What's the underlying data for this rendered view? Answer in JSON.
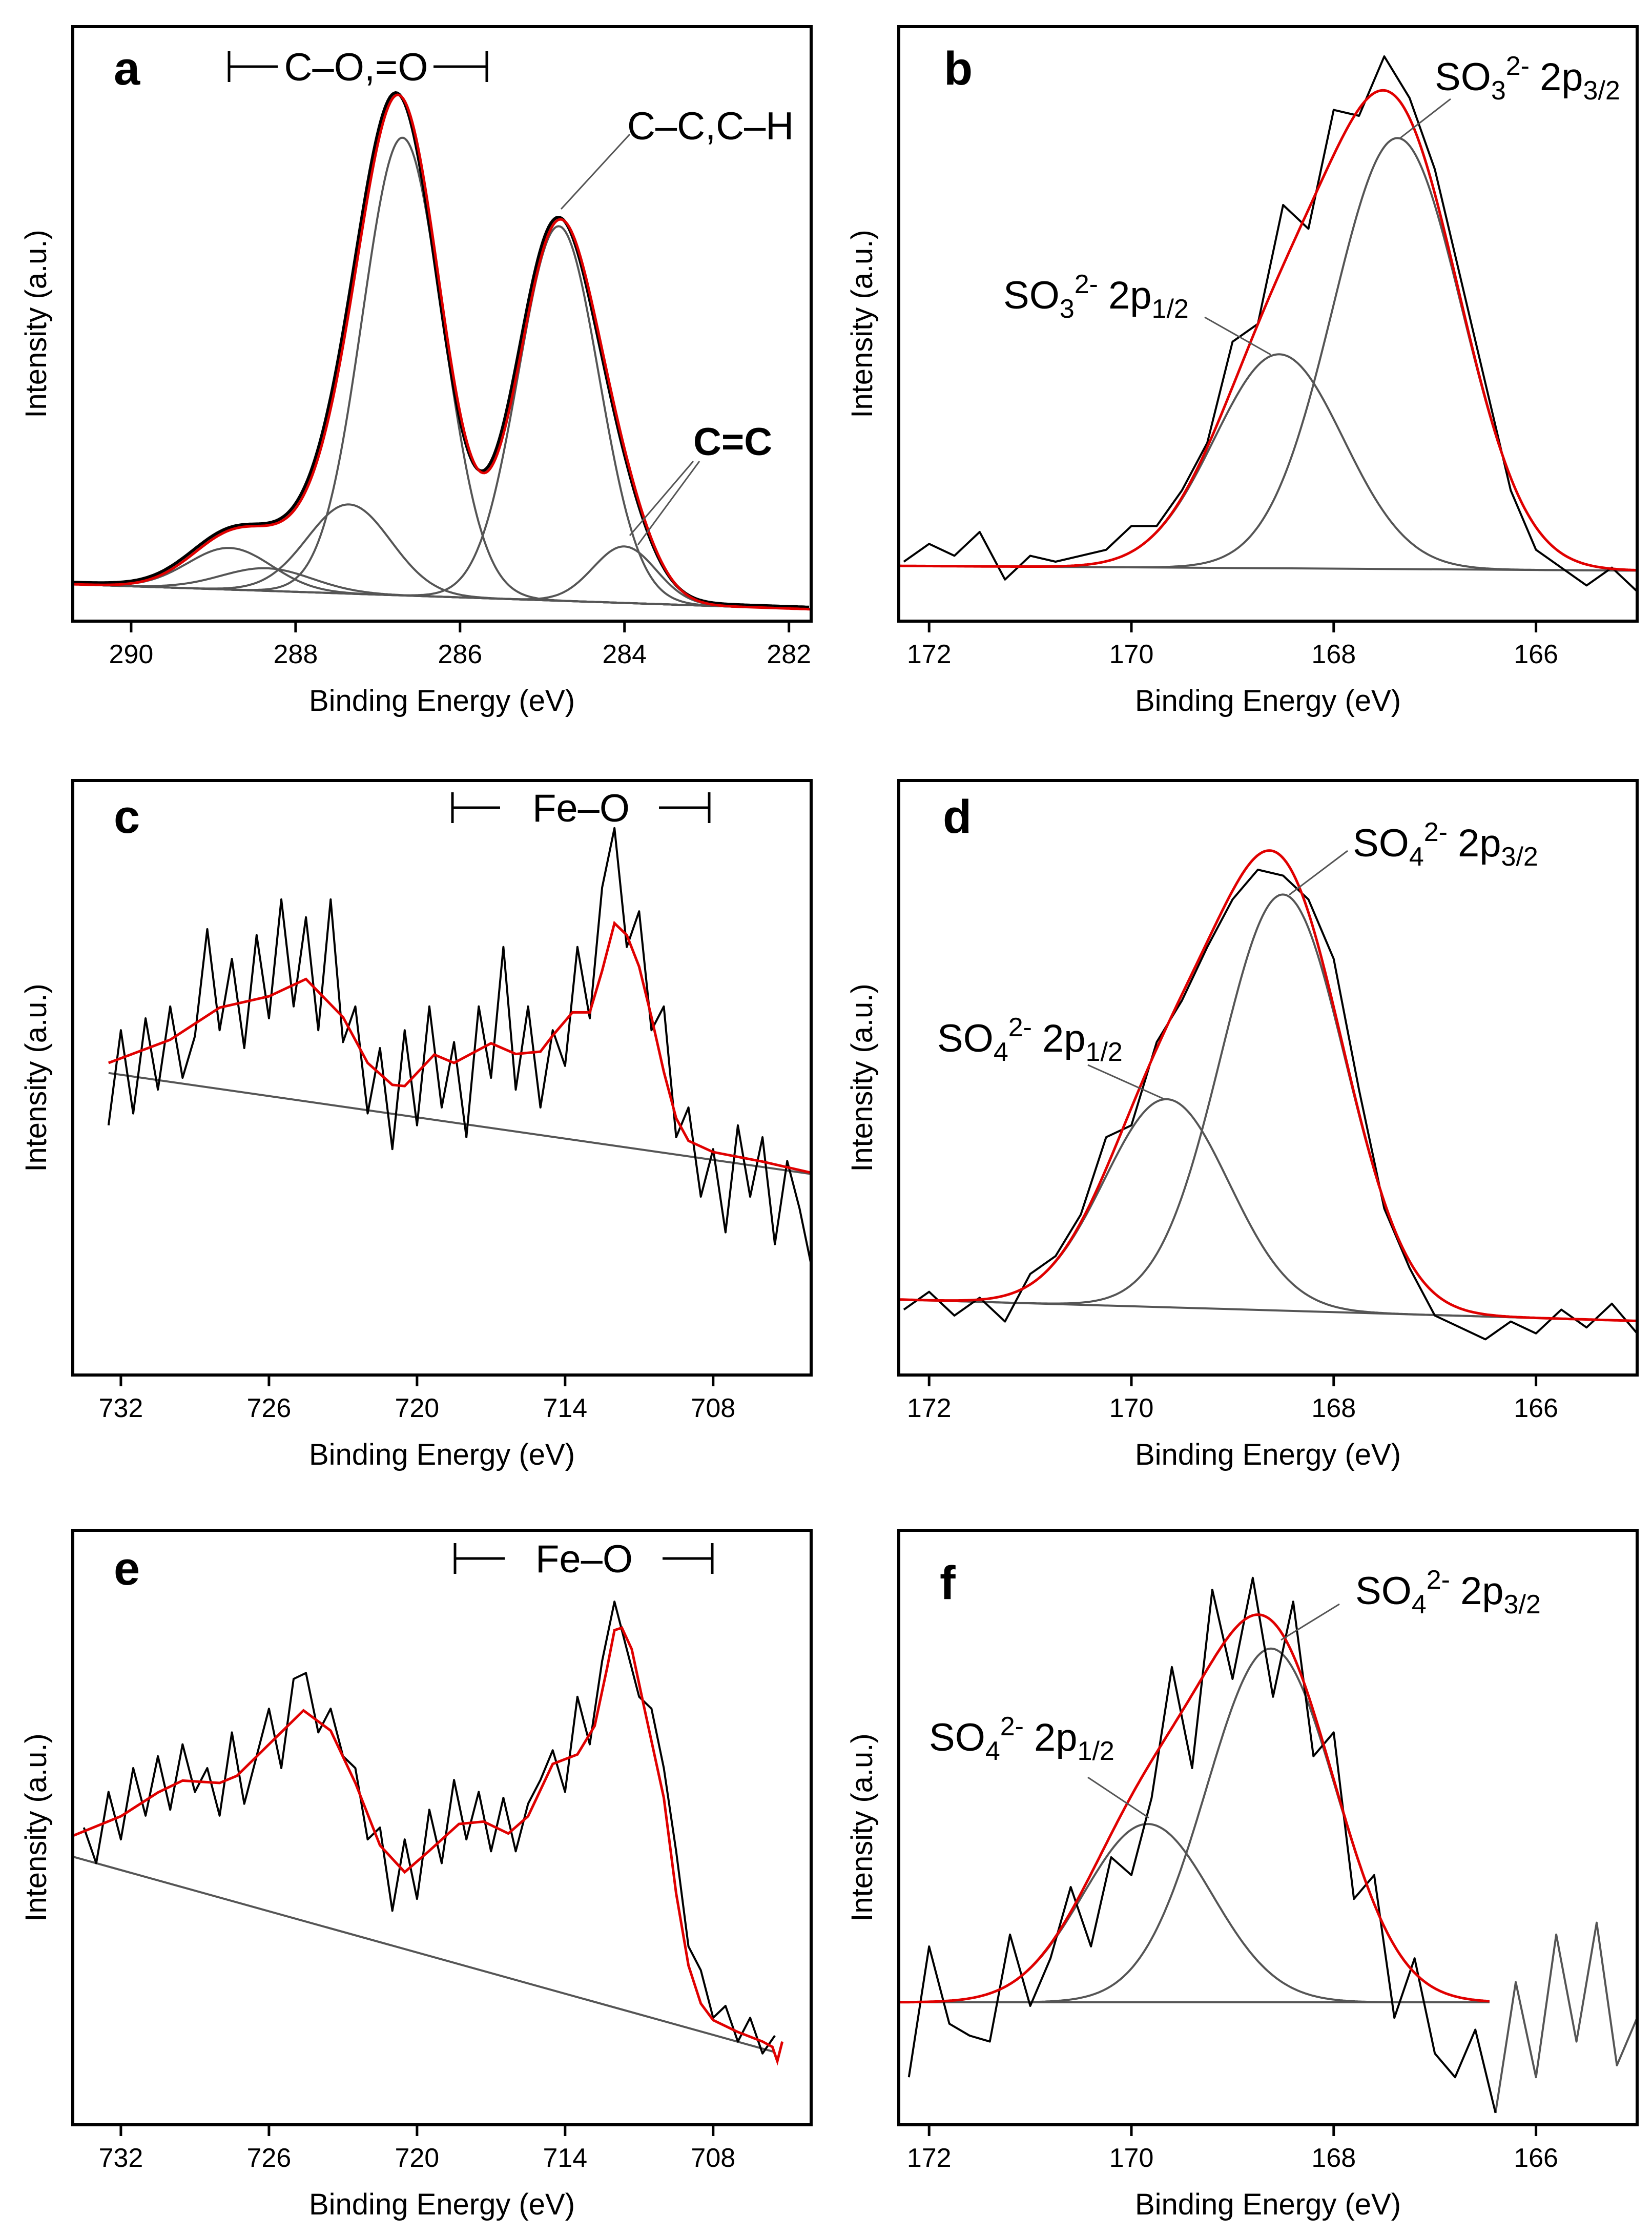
{
  "colors": {
    "raw": "#000000",
    "fit_envelope": "#e00000",
    "components": "#555555",
    "background": "#555555",
    "raw_outside_fit": "#555555"
  },
  "chart_data": [
    {
      "panel": "a",
      "type": "line",
      "xlabel": "Binding Energy (eV)",
      "ylabel": "Intensity (a.u.)",
      "xlim": [
        290.71,
        281.73
      ],
      "ylim": [
        0,
        100
      ],
      "x_reversed": true,
      "grid": false,
      "xticks": [
        "290",
        "288",
        "286",
        "284",
        "282"
      ],
      "background": {
        "x": [
          290.71,
          281.73
        ],
        "y": [
          6.2,
          2.0
        ]
      },
      "components": [
        {
          "center": 286.7,
          "height": 77,
          "fwhm": 1.15
        },
        {
          "center": 284.8,
          "height": 63,
          "fwhm": 1.15
        },
        {
          "center": 287.35,
          "height": 15,
          "fwhm": 1.2
        },
        {
          "center": 284.0,
          "height": 9.5,
          "fwhm": 0.9
        },
        {
          "center": 288.8,
          "height": 7,
          "fwhm": 1.2
        },
        {
          "center": 288.35,
          "height": 3.8,
          "fwhm": 1.3
        }
      ],
      "annotations": [
        {
          "kind": "bracket",
          "text": "C–O,=O"
        },
        {
          "kind": "label",
          "text": "C–C,C–H"
        },
        {
          "kind": "label-bold",
          "text": "C=C"
        }
      ]
    },
    {
      "panel": "b",
      "type": "line",
      "xlabel": "Binding Energy (eV)",
      "ylabel": "Intensity (a.u.)",
      "xlim": [
        172.3,
        165.0
      ],
      "ylim": [
        0,
        100
      ],
      "x_reversed": true,
      "grid": false,
      "xticks": [
        "172",
        "170",
        "168",
        "166"
      ],
      "background": {
        "x": [
          172.3,
          165.0
        ],
        "y": [
          9.3,
          8.5
        ]
      },
      "components": [
        {
          "center": 167.37,
          "height": 72.5,
          "fwhm": 1.5
        },
        {
          "center": 168.54,
          "height": 36,
          "fwhm": 1.5
        }
      ],
      "raw": {
        "x_start": 172.25,
        "x_step": -0.25,
        "y": [
          10,
          13,
          11,
          15,
          7,
          11,
          10,
          11,
          12,
          16,
          16,
          22,
          30,
          47,
          50,
          70,
          66,
          86,
          85,
          95,
          88,
          76,
          58,
          40,
          22,
          12,
          9,
          6,
          9,
          5
        ]
      },
      "annotations": [
        {
          "kind": "label",
          "parts": {
            "base": "SO",
            "sub1": "3",
            "sup": "2-",
            "orb": "2p",
            "sub2": "3/2"
          }
        },
        {
          "kind": "label",
          "parts": {
            "base": "SO",
            "sub1": "3",
            "sup": "2-",
            "orb": "2p",
            "sub2": "1/2"
          }
        }
      ]
    },
    {
      "panel": "c",
      "type": "line",
      "xlabel": "Binding Energy (eV)",
      "ylabel": "Intensity (a.u.)",
      "xlim": [
        733.95,
        704.03
      ],
      "ylim": [
        0,
        100
      ],
      "x_reversed": true,
      "grid": false,
      "xticks": [
        "732",
        "726",
        "720",
        "714",
        "708"
      ],
      "background": {
        "x": [
          732.5,
          704.0
        ],
        "y": [
          50.8,
          33.8
        ]
      },
      "envelope": {
        "x": [
          732.5,
          730,
          728,
          726,
          724.5,
          723,
          722,
          721,
          720.5,
          719.3,
          718.5,
          717,
          716,
          715,
          714.5,
          713.7,
          713,
          712.5,
          712,
          711.5,
          711,
          710.5,
          710,
          709.5,
          709,
          708,
          706,
          704
        ],
        "y": [
          52.5,
          56.4,
          61.8,
          63.7,
          66.6,
          60.2,
          52.5,
          48.8,
          48.6,
          53.9,
          52.5,
          55.8,
          54,
          54.4,
          57.1,
          61,
          61,
          68,
          76,
          74,
          68.7,
          60.2,
          51,
          43.2,
          39.4,
          37.5,
          35.9,
          34
        ]
      },
      "raw": {
        "x_start": 732.5,
        "x_step": -0.5,
        "y": [
          42,
          58,
          44,
          60,
          48,
          62,
          50,
          57,
          75,
          58,
          70,
          55,
          74,
          60,
          80,
          62,
          77,
          58,
          80,
          56,
          62,
          44,
          55,
          38,
          58,
          42,
          62,
          45,
          56,
          40,
          62,
          50,
          72,
          48,
          62,
          45,
          58,
          52,
          72,
          60,
          82,
          92,
          72,
          78,
          58,
          62,
          40,
          45,
          30,
          38,
          24,
          42,
          30,
          40,
          22,
          36,
          28,
          18
        ]
      },
      "annotations": [
        {
          "kind": "bracket",
          "text": "Fe–O"
        }
      ]
    },
    {
      "panel": "d",
      "type": "line",
      "xlabel": "Binding Energy (eV)",
      "ylabel": "Intensity (a.u.)",
      "xlim": [
        172.3,
        165.0
      ],
      "ylim": [
        0,
        100
      ],
      "x_reversed": true,
      "grid": false,
      "xticks": [
        "172",
        "170",
        "168",
        "166"
      ],
      "background": {
        "x": [
          172.3,
          165.0
        ],
        "y": [
          12.7,
          9.1
        ]
      },
      "components": [
        {
          "center": 168.5,
          "height": 70,
          "fwhm": 1.45
        },
        {
          "center": 169.65,
          "height": 35,
          "fwhm": 1.45
        }
      ],
      "raw": {
        "x_start": 172.25,
        "x_step": -0.25,
        "y": [
          11,
          14,
          10,
          13,
          9,
          17,
          20,
          27,
          40,
          42,
          56,
          63,
          72,
          80,
          85,
          84,
          80,
          70,
          48,
          28,
          18,
          10,
          8,
          6,
          9,
          7,
          11,
          8,
          12,
          7
        ]
      },
      "annotations": [
        {
          "kind": "label",
          "parts": {
            "base": "SO",
            "sub1": "4",
            "sup": "2-",
            "orb": "2p",
            "sub2": "3/2"
          }
        },
        {
          "kind": "label",
          "parts": {
            "base": "SO",
            "sub1": "4",
            "sup": "2-",
            "orb": "2p",
            "sub2": "1/2"
          }
        }
      ]
    },
    {
      "panel": "e",
      "type": "line",
      "xlabel": "Binding Energy (eV)",
      "ylabel": "Intensity (a.u.)",
      "xlim": [
        733.95,
        704.03
      ],
      "ylim": [
        0,
        100
      ],
      "x_reversed": true,
      "grid": false,
      "xticks": [
        "732",
        "726",
        "720",
        "714",
        "708"
      ],
      "background": {
        "x": [
          733.95,
          705.56
        ],
        "y": [
          45.1,
          12.3
        ]
      },
      "envelope": {
        "x": [
          733.95,
          732,
          730.5,
          729.5,
          728,
          727.3,
          726,
          724.6,
          723.5,
          722.5,
          721.5,
          720.5,
          719.5,
          718.3,
          717.3,
          716.3,
          715.5,
          714.5,
          713.5,
          712.8,
          712.3,
          712,
          711.7,
          711.3,
          710.8,
          710,
          709.5,
          709,
          708.5,
          708,
          707,
          706,
          705.6,
          705.4,
          705.2
        ],
        "y": [
          48.6,
          51.9,
          55.9,
          57.9,
          57.5,
          58.7,
          64,
          69.7,
          66.3,
          57.5,
          47,
          42.5,
          46.1,
          50.6,
          51,
          49,
          51.9,
          60.7,
          62.3,
          67.1,
          76.8,
          83.2,
          83.6,
          80,
          70.3,
          55,
          38.9,
          26.8,
          20.4,
          17.6,
          15.6,
          14,
          13.1,
          10.7,
          14
        ]
      },
      "raw": {
        "x_start": 733.5,
        "x_step": -0.5,
        "y": [
          50,
          44,
          56,
          48,
          60,
          52,
          62,
          53,
          64,
          56,
          60,
          52,
          66,
          54,
          62,
          70,
          60,
          75,
          76,
          66,
          70,
          62,
          60,
          48,
          50,
          36,
          48,
          38,
          53,
          44,
          58,
          48,
          56,
          46,
          55,
          46,
          54,
          58,
          63,
          56,
          72,
          64,
          78,
          88,
          80,
          72,
          70,
          60,
          46,
          30,
          26,
          18,
          20,
          14,
          18,
          12,
          15
        ]
      },
      "annotations": [
        {
          "kind": "bracket",
          "text": "Fe–O"
        }
      ]
    },
    {
      "panel": "f",
      "type": "line",
      "xlabel": "Binding Energy (eV)",
      "ylabel": "Intensity (a.u.)",
      "xlim": [
        172.3,
        165.0
      ],
      "ylim": [
        0,
        100
      ],
      "x_reversed": true,
      "grid": false,
      "xticks": [
        "172",
        "170",
        "168",
        "166"
      ],
      "background": {
        "x": [
          172.3,
          166.46
        ],
        "y": [
          20.6,
          20.6
        ]
      },
      "components": [
        {
          "center": 168.62,
          "height": 59.5,
          "fwhm": 1.5
        },
        {
          "center": 169.84,
          "height": 30,
          "fwhm": 1.5
        }
      ],
      "raw": {
        "x_start": 172.2,
        "x_step": -0.2,
        "y": [
          8,
          30,
          17,
          15,
          14,
          32,
          20,
          28,
          40,
          30,
          45,
          42,
          55,
          77,
          60,
          90,
          75,
          92,
          72,
          88,
          62,
          66,
          38,
          42,
          18,
          28,
          12,
          8,
          16,
          2
        ]
      },
      "raw_outside_fit": {
        "x_start": 166.4,
        "x_step": -0.2,
        "y": [
          2,
          24,
          8,
          32,
          14,
          34,
          10,
          18
        ]
      },
      "annotations": [
        {
          "kind": "label",
          "parts": {
            "base": "SO",
            "sub1": "4",
            "sup": "2-",
            "orb": "2p",
            "sub2": "3/2"
          }
        },
        {
          "kind": "label",
          "parts": {
            "base": "SO",
            "sub1": "4",
            "sup": "2-",
            "orb": "2p",
            "sub2": "1/2"
          }
        }
      ]
    }
  ]
}
